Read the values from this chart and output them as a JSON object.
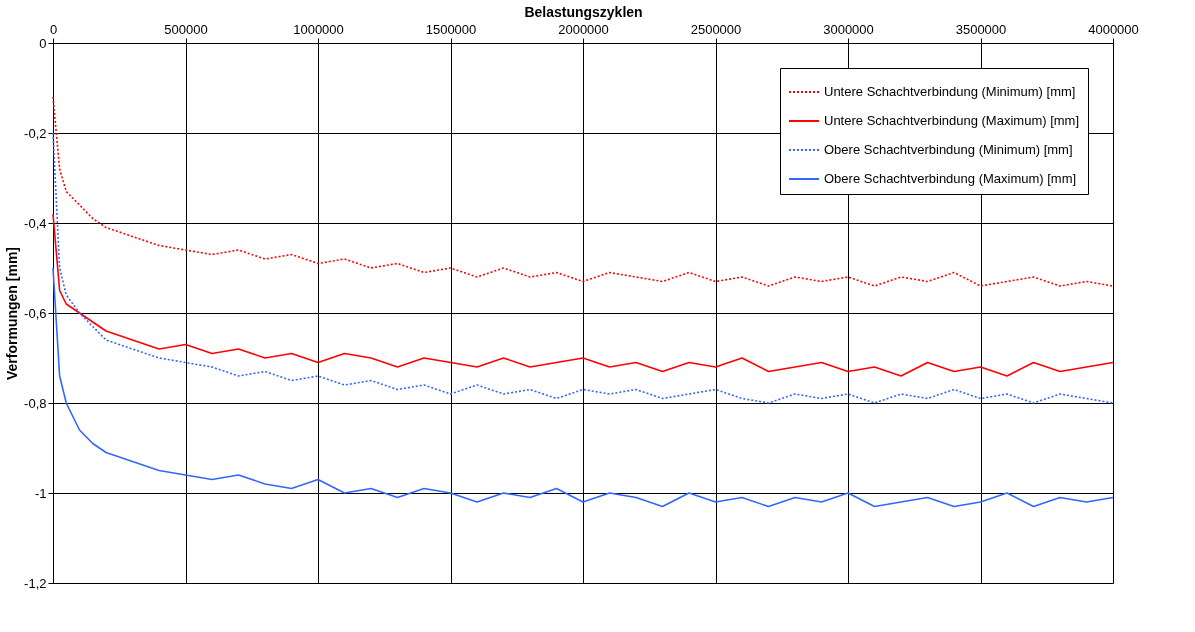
{
  "chart_data": {
    "type": "line",
    "xlabel": "Belastungszyklen",
    "ylabel": "Verformungen [mm]",
    "x": [
      0,
      25000,
      50000,
      100000,
      150000,
      200000,
      300000,
      400000,
      500000,
      600000,
      700000,
      800000,
      900000,
      1000000,
      1100000,
      1200000,
      1300000,
      1400000,
      1500000,
      1600000,
      1700000,
      1800000,
      1900000,
      2000000,
      2100000,
      2200000,
      2300000,
      2400000,
      2500000,
      2600000,
      2700000,
      2800000,
      2900000,
      3000000,
      3100000,
      3200000,
      3300000,
      3400000,
      3500000,
      3600000,
      3700000,
      3800000,
      3900000,
      4000000
    ],
    "series": [
      {
        "name": "Untere Schachtverbindung (Minimum) [mm]",
        "color": "#ff0000",
        "line_style": "dotted",
        "values": [
          -0.12,
          -0.28,
          -0.33,
          -0.36,
          -0.39,
          -0.41,
          -0.43,
          -0.45,
          -0.46,
          -0.47,
          -0.46,
          -0.48,
          -0.47,
          -0.49,
          -0.48,
          -0.5,
          -0.49,
          -0.51,
          -0.5,
          -0.52,
          -0.5,
          -0.52,
          -0.51,
          -0.53,
          -0.51,
          -0.52,
          -0.53,
          -0.51,
          -0.53,
          -0.52,
          -0.54,
          -0.52,
          -0.53,
          -0.52,
          -0.54,
          -0.52,
          -0.53,
          -0.51,
          -0.54,
          -0.53,
          -0.52,
          -0.54,
          -0.53,
          -0.54
        ]
      },
      {
        "name": "Untere Schachtverbindung (Maximum) [mm]",
        "color": "#ff0000",
        "line_style": "solid",
        "values": [
          -0.38,
          -0.55,
          -0.58,
          -0.6,
          -0.62,
          -0.64,
          -0.66,
          -0.68,
          -0.67,
          -0.69,
          -0.68,
          -0.7,
          -0.69,
          -0.71,
          -0.69,
          -0.7,
          -0.72,
          -0.7,
          -0.71,
          -0.72,
          -0.7,
          -0.72,
          -0.71,
          -0.7,
          -0.72,
          -0.71,
          -0.73,
          -0.71,
          -0.72,
          -0.7,
          -0.73,
          -0.72,
          -0.71,
          -0.73,
          -0.72,
          -0.74,
          -0.71,
          -0.73,
          -0.72,
          -0.74,
          -0.71,
          -0.73,
          -0.72,
          -0.71
        ]
      },
      {
        "name": "Obere Schachtverbindung (Minimum) [mm]",
        "color": "#3366ff",
        "line_style": "dotted",
        "values": [
          -0.2,
          -0.5,
          -0.56,
          -0.6,
          -0.63,
          -0.66,
          -0.68,
          -0.7,
          -0.71,
          -0.72,
          -0.74,
          -0.73,
          -0.75,
          -0.74,
          -0.76,
          -0.75,
          -0.77,
          -0.76,
          -0.78,
          -0.76,
          -0.78,
          -0.77,
          -0.79,
          -0.77,
          -0.78,
          -0.77,
          -0.79,
          -0.78,
          -0.77,
          -0.79,
          -0.8,
          -0.78,
          -0.79,
          -0.78,
          -0.8,
          -0.78,
          -0.79,
          -0.77,
          -0.79,
          -0.78,
          -0.8,
          -0.78,
          -0.79,
          -0.8
        ]
      },
      {
        "name": "Obere Schachtverbindung (Maximum) [mm]",
        "color": "#3366ff",
        "line_style": "solid",
        "values": [
          -0.5,
          -0.74,
          -0.8,
          -0.86,
          -0.89,
          -0.91,
          -0.93,
          -0.95,
          -0.96,
          -0.97,
          -0.96,
          -0.98,
          -0.99,
          -0.97,
          -1.0,
          -0.99,
          -1.01,
          -0.99,
          -1.0,
          -1.02,
          -1.0,
          -1.01,
          -0.99,
          -1.02,
          -1.0,
          -1.01,
          -1.03,
          -1.0,
          -1.02,
          -1.01,
          -1.03,
          -1.01,
          -1.02,
          -1.0,
          -1.03,
          -1.02,
          -1.01,
          -1.03,
          -1.02,
          -1.0,
          -1.03,
          -1.01,
          -1.02,
          -1.01
        ]
      }
    ],
    "xlim": [
      0,
      4000000
    ],
    "xticks": [
      0,
      500000,
      1000000,
      1500000,
      2000000,
      2500000,
      3000000,
      3500000,
      4000000
    ],
    "ylim": [
      -1.2,
      0
    ],
    "yticks": [
      0,
      {
        "value": -0.2,
        "label": "-0,2"
      },
      {
        "value": -0.4,
        "label": "-0,4"
      },
      {
        "value": -0.6,
        "label": "-0,6"
      },
      {
        "value": -0.8,
        "label": "-0,8"
      },
      -1,
      {
        "value": -1.2,
        "label": "-1,2"
      }
    ],
    "grid": true,
    "legend": "top right"
  }
}
